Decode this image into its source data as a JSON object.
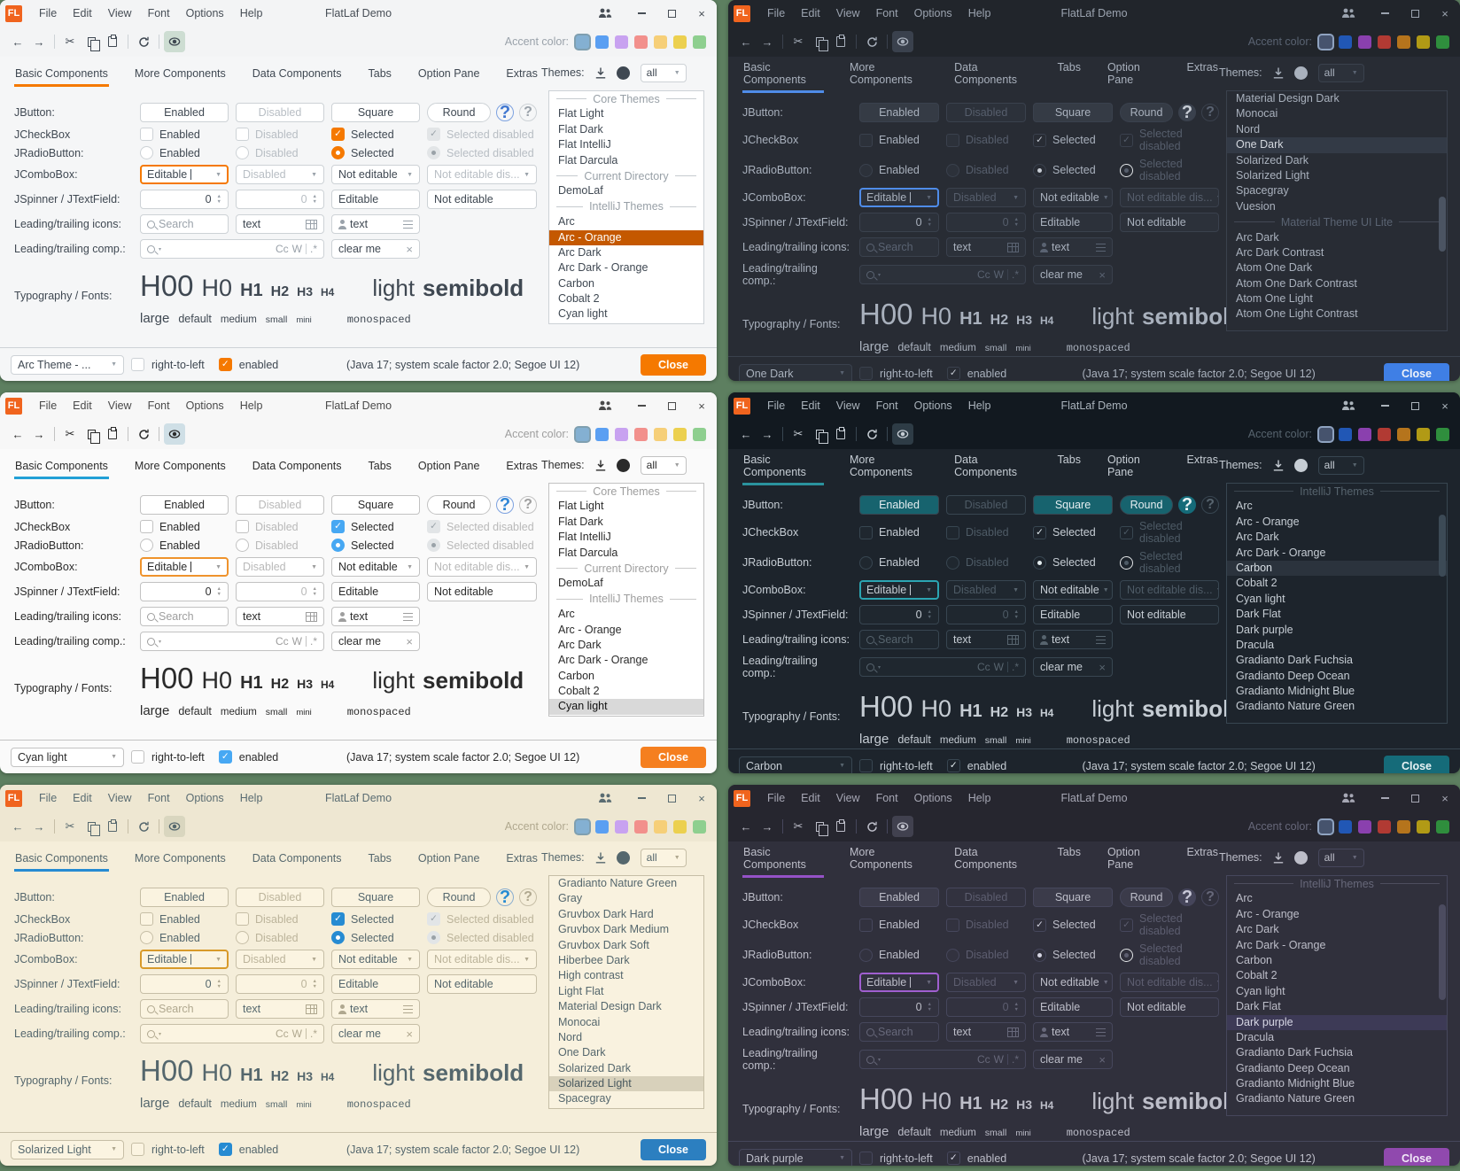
{
  "canvas": {
    "background": "#5d7f60"
  },
  "shared": {
    "logo": "FL",
    "title": "FlatLaf Demo",
    "menus": [
      "File",
      "Edit",
      "View",
      "Font",
      "Options",
      "Help"
    ],
    "icons": {
      "back": "←",
      "forward": "→",
      "cut": "✂",
      "close": "×",
      "check": "✓",
      "arrow": "▼",
      "mini_arrow": "▾",
      "clear": "×",
      "help": "?",
      "spin_up": "▲",
      "spin_down": "▼"
    },
    "toolbar": {
      "accent_label": "Accent color:"
    },
    "tabs": [
      "Basic Components",
      "More Components",
      "Data Components",
      "Tabs",
      "Option Pane",
      "Extras"
    ],
    "themes_label": "Themes:",
    "filter_value": "all",
    "rows": {
      "jbutton": {
        "label": "JButton:",
        "buttons": [
          "Enabled",
          "Disabled",
          "Square",
          "Round"
        ]
      },
      "jcheckbox": {
        "label": "JCheckBox",
        "items": [
          "Enabled",
          "Disabled",
          "Selected",
          "Selected disabled"
        ]
      },
      "jradio": {
        "label": "JRadioButton:",
        "items": [
          "Enabled",
          "Disabled",
          "Selected",
          "Selected disabled"
        ]
      },
      "jcombo": {
        "label": "JComboBox:",
        "items": [
          "Editable",
          "Disabled",
          "Not editable",
          "Not editable dis..."
        ]
      },
      "jspinner": {
        "label": "JSpinner / JTextField:",
        "spinner1": "0",
        "spinner2": "0",
        "field1": "Editable",
        "field2": "Not editable"
      },
      "icons_row": {
        "label": "Leading/trailing icons:",
        "search_placeholder": "Search",
        "text1": "text",
        "text2": "text"
      },
      "comp_row": {
        "label": "Leading/trailing comp.:",
        "cc": "Cc",
        "w": "W",
        "regex": ".*",
        "clear_field": "clear me"
      },
      "typography": {
        "label": "Typography / Fonts:",
        "headings": [
          "H00",
          "H0",
          "H1",
          "H2",
          "H3",
          "H4"
        ],
        "light": "light",
        "semibold": "semibold",
        "sizes": [
          "large",
          "default",
          "medium",
          "small",
          "mini"
        ],
        "monospaced": "monospaced"
      }
    },
    "footer": {
      "rtl": "right-to-left",
      "enabled": "enabled",
      "java_info": "(Java 17;  system scale factor 2.0; Segoe UI 12)",
      "close": "Close"
    },
    "swatches_light": [
      "#84b0d2",
      "#5a9ff2",
      "#c8a2f0",
      "#f2908c",
      "#f6cf78",
      "#ecd04f",
      "#8ecf8f"
    ],
    "swatches_dark": [
      "#46536d",
      "#2157b5",
      "#8a40ae",
      "#b13a33",
      "#b5741c",
      "#b19a15",
      "#2f8e3d"
    ]
  },
  "windows": [
    {
      "name": "Arc - Orange",
      "footer_theme": "Arc Theme - ...",
      "list": [
        {
          "sep": "Core Themes"
        },
        {
          "label": "Flat Light"
        },
        {
          "label": "Flat Dark"
        },
        {
          "label": "Flat IntelliJ"
        },
        {
          "label": "Flat Darcula"
        },
        {
          "sep": "Current Directory"
        },
        {
          "label": "DemoLaf"
        },
        {
          "sep": "IntelliJ Themes"
        },
        {
          "label": "Arc"
        },
        {
          "label": "Arc - Orange",
          "sel": true
        },
        {
          "label": "Arc Dark"
        },
        {
          "label": "Arc Dark - Orange"
        },
        {
          "label": "Carbon"
        },
        {
          "label": "Cobalt 2"
        },
        {
          "label": "Cyan light"
        },
        {
          "label": "Dark Flat"
        }
      ],
      "scrollbar": null,
      "palette": {
        "dark": false,
        "bg": "#f5f6f7",
        "titlebar": "#f3f4f5",
        "fg": "#3f4852",
        "titleFg": "#474e56",
        "muted": "#9aa2aa",
        "border": "#cdd2d6",
        "inputBg": "#ffffff",
        "disabledFg": "#b8bec4",
        "accent": "#f57900",
        "focus": "#f57900",
        "check": "#f57900",
        "btnBg": "#ffffff",
        "btnFg": "#3f4852",
        "selBg": "#c45800",
        "selFg": "#ffffff",
        "close": "#f57900",
        "closeFg": "#ffffff",
        "listBg": "#ffffff",
        "sepFg": "#98a0a7",
        "eyeBg": "#cdddd2",
        "scrollThumb": "#c5cacd",
        "swatchOutline": "#7f9fb0",
        "help1bg": "transparent",
        "help1fg": "#3f76d0",
        "help1border": "#7da2e0"
      }
    },
    {
      "name": "One Dark",
      "footer_theme": "One Dark",
      "list": [
        {
          "label": "Material Design Dark"
        },
        {
          "label": "Monocai"
        },
        {
          "label": "Nord"
        },
        {
          "label": "One Dark",
          "sel": true
        },
        {
          "label": "Solarized Dark"
        },
        {
          "label": "Solarized Light"
        },
        {
          "label": "Spacegray"
        },
        {
          "label": "Vuesion"
        },
        {
          "sep": "Material Theme UI Lite"
        },
        {
          "label": "Arc Dark"
        },
        {
          "label": "Arc Dark Contrast"
        },
        {
          "label": "Atom One Dark"
        },
        {
          "label": "Atom One Dark Contrast"
        },
        {
          "label": "Atom One Light"
        },
        {
          "label": "Atom One Light Contrast"
        }
      ],
      "scrollbar": {
        "top_pct": 44,
        "height_pct": 23
      },
      "palette": {
        "dark": true,
        "bg": "#282c34",
        "titlebar": "#21252b",
        "fg": "#a9b1bd",
        "titleFg": "#9ba3af",
        "muted": "#5a6372",
        "border": "#3a414d",
        "inputBg": "#2c313a",
        "disabledFg": "#565e6c",
        "accent": "#4f8ce8",
        "focus": "#4f8ce8",
        "check": "#c8cdd5",
        "btnBg": "#353b45",
        "btnFg": "#a9b1bd",
        "selBg": "#333a46",
        "selFg": "#d4d8df",
        "close": "#3f7fe5",
        "closeFg": "#f0f4fa",
        "listBg": "#282c34",
        "sepFg": "#5a6372",
        "eyeBg": "#3a414d",
        "scrollThumb": "#4b5462",
        "swatchOutline": "#8fa3c0",
        "help1bg": "#3a414d",
        "help1fg": "#c8cdd5",
        "help1border": "#3a414d"
      }
    },
    {
      "name": "Cyan light",
      "footer_theme": "Cyan light",
      "list": [
        {
          "sep": "Core Themes"
        },
        {
          "label": "Flat Light"
        },
        {
          "label": "Flat Dark"
        },
        {
          "label": "Flat IntelliJ"
        },
        {
          "label": "Flat Darcula"
        },
        {
          "sep": "Current Directory"
        },
        {
          "label": "DemoLaf"
        },
        {
          "sep": "IntelliJ Themes"
        },
        {
          "label": "Arc"
        },
        {
          "label": "Arc - Orange"
        },
        {
          "label": "Arc Dark"
        },
        {
          "label": "Arc Dark - Orange"
        },
        {
          "label": "Carbon"
        },
        {
          "label": "Cobalt 2"
        },
        {
          "label": "Cyan light",
          "sel": true
        },
        {
          "label": "Dark Flat"
        }
      ],
      "scrollbar": null,
      "palette": {
        "dark": false,
        "bg": "#fafafa",
        "titlebar": "#f7f7f7",
        "fg": "#2b2b2b",
        "titleFg": "#4a4a4a",
        "muted": "#9e9e9e",
        "border": "#c2c2c2",
        "inputBg": "#ffffff",
        "disabledFg": "#b9b9b9",
        "accent": "#22a0d6",
        "focus": "#ef932c",
        "check": "#47a8f3",
        "btnBg": "#ffffff",
        "btnFg": "#2b2b2b",
        "selBg": "#d9d9d9",
        "selFg": "#111111",
        "close": "#f57f1f",
        "closeFg": "#ffffff",
        "listBg": "#ffffff",
        "sepFg": "#9e9e9e",
        "eyeBg": "#cfdfe6",
        "scrollThumb": "#cccccc",
        "swatchOutline": "#7f9fb0",
        "help1bg": "transparent",
        "help1fg": "#2f86d6",
        "help1border": "#7da2e0"
      }
    },
    {
      "name": "Carbon",
      "footer_theme": "Carbon",
      "list": [
        {
          "sep": "IntelliJ Themes"
        },
        {
          "label": "Arc"
        },
        {
          "label": "Arc - Orange"
        },
        {
          "label": "Arc Dark"
        },
        {
          "label": "Arc Dark - Orange"
        },
        {
          "label": "Carbon",
          "sel": true
        },
        {
          "label": "Cobalt 2"
        },
        {
          "label": "Cyan light"
        },
        {
          "label": "Dark Flat"
        },
        {
          "label": "Dark purple"
        },
        {
          "label": "Dracula"
        },
        {
          "label": "Gradianto Dark Fuchsia"
        },
        {
          "label": "Gradianto Deep Ocean"
        },
        {
          "label": "Gradianto Midnight Blue"
        },
        {
          "label": "Gradianto Nature Green"
        }
      ],
      "scrollbar": {
        "top_pct": 13,
        "height_pct": 26
      },
      "palette": {
        "dark": true,
        "bg": "#1d242c",
        "titlebar": "#121920",
        "fg": "#c6cdd4",
        "titleFg": "#aab3bb",
        "muted": "#57646e",
        "border": "#384651",
        "inputBg": "#1f272f",
        "disabledFg": "#4e5b66",
        "accent": "#2a939e",
        "focus": "#2ba5b2",
        "check": "#e4edf0",
        "btnBg": "#17636e",
        "btnFg": "#e4edf0",
        "selBg": "#2b333d",
        "selFg": "#d7dee4",
        "close": "#156b79",
        "closeFg": "#e8f3f5",
        "listBg": "#1d242c",
        "sepFg": "#56636d",
        "eyeBg": "#2e3c46",
        "scrollThumb": "#3c4a56",
        "swatchOutline": "#8fa3c0",
        "help1bg": "#156b79",
        "help1fg": "#e8f3f5",
        "help1border": "#156b79"
      }
    },
    {
      "name": "Solarized Light",
      "footer_theme": "Solarized Light",
      "list": [
        {
          "label": "Gradianto Nature Green"
        },
        {
          "label": "Gray"
        },
        {
          "label": "Gruvbox Dark Hard"
        },
        {
          "label": "Gruvbox Dark Medium"
        },
        {
          "label": "Gruvbox Dark Soft"
        },
        {
          "label": "Hiberbee Dark"
        },
        {
          "label": "High contrast"
        },
        {
          "label": "Light Flat"
        },
        {
          "label": "Material Design Dark"
        },
        {
          "label": "Monocai"
        },
        {
          "label": "Nord"
        },
        {
          "label": "One Dark"
        },
        {
          "label": "Solarized Dark"
        },
        {
          "label": "Solarized Light",
          "sel": true
        },
        {
          "label": "Spacegray"
        }
      ],
      "scrollbar": null,
      "palette": {
        "dark": false,
        "bg": "#f5eeda",
        "titlebar": "#eee7d2",
        "fg": "#55676d",
        "titleFg": "#5a6c72",
        "muted": "#b0a88f",
        "border": "#c6bea6",
        "inputBg": "#fbf4e1",
        "disabledFg": "#bcb49b",
        "accent": "#268bd2",
        "focus": "#d89a2a",
        "check": "#268bd2",
        "btnBg": "#faf3e0",
        "btnFg": "#55676d",
        "selBg": "#d8d1bb",
        "selFg": "#49595f",
        "close": "#2c7fc0",
        "closeFg": "#ffffff",
        "listBg": "#f9f2df",
        "sepFg": "#b0a88f",
        "eyeBg": "#d9d6bf",
        "scrollThumb": "#cfc8b0",
        "swatchOutline": "#7f9fb0",
        "help1bg": "transparent",
        "help1fg": "#268bd2",
        "help1border": "#8aaed0"
      }
    },
    {
      "name": "Dark purple",
      "footer_theme": "Dark purple",
      "list": [
        {
          "sep": "IntelliJ Themes"
        },
        {
          "label": "Arc"
        },
        {
          "label": "Arc - Orange"
        },
        {
          "label": "Arc Dark"
        },
        {
          "label": "Arc Dark - Orange"
        },
        {
          "label": "Carbon"
        },
        {
          "label": "Cobalt 2"
        },
        {
          "label": "Cyan light"
        },
        {
          "label": "Dark Flat"
        },
        {
          "label": "Dark purple",
          "sel": true
        },
        {
          "label": "Dracula"
        },
        {
          "label": "Gradianto Dark Fuchsia"
        },
        {
          "label": "Gradianto Deep Ocean"
        },
        {
          "label": "Gradianto Midnight Blue"
        },
        {
          "label": "Gradianto Nature Green"
        }
      ],
      "scrollbar": {
        "top_pct": 12,
        "height_pct": 40
      },
      "palette": {
        "dark": true,
        "bg": "#30303c",
        "titlebar": "#26262f",
        "fg": "#bdbec9",
        "titleFg": "#a6a7b4",
        "muted": "#67687a",
        "border": "#46475c",
        "inputBg": "#32323f",
        "disabledFg": "#5d5e70",
        "accent": "#9552c7",
        "focus": "#a05fd0",
        "check": "#d6d6e4",
        "btnBg": "#3b3b4a",
        "btnFg": "#bdbec9",
        "selBg": "#3d3a56",
        "selFg": "#d6d6e4",
        "close": "#9049ae",
        "closeFg": "#f2eaf8",
        "listBg": "#30303c",
        "sepFg": "#67687a",
        "eyeBg": "#41414f",
        "scrollThumb": "#4c4c60",
        "swatchOutline": "#8fa3c0",
        "help1bg": "#45455a",
        "help1fg": "#c8c8d8",
        "help1border": "#45455a"
      }
    }
  ]
}
